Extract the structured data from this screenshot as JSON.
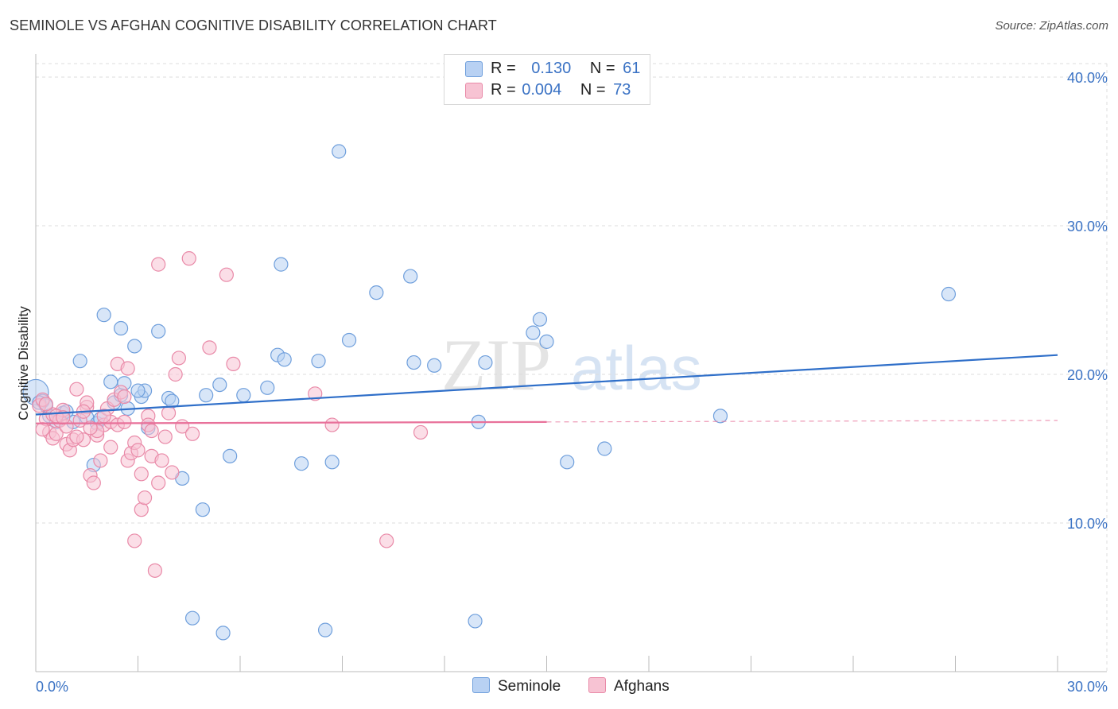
{
  "title": "SEMINOLE VS AFGHAN COGNITIVE DISABILITY CORRELATION CHART",
  "source": "Source: ZipAtlas.com",
  "legend": {
    "rows": [
      {
        "r_label": "R =",
        "r_value": "0.130",
        "n_label": "N =",
        "n_value": "61"
      },
      {
        "r_label": "R =",
        "r_value": "0.004",
        "n_label": "N =",
        "n_value": "73"
      }
    ]
  },
  "watermark": {
    "zip": "ZIP",
    "atlas": "atlas"
  },
  "colors": {
    "seminole_fill": "#b8d1f3",
    "seminole_stroke": "#6f9fdc",
    "seminole_line": "#2f6fc9",
    "afghans_fill": "#f7c3d3",
    "afghans_stroke": "#e98aa8",
    "afghans_line": "#e8719a",
    "tick_label": "#3a72c4",
    "grid": "#dddddd"
  },
  "chart_data": {
    "type": "scatter",
    "title": "SEMINOLE VS AFGHAN COGNITIVE DISABILITY CORRELATION CHART",
    "xlabel": "",
    "ylabel": "Cognitive Disability",
    "xlim": [
      0,
      30
    ],
    "ylim": [
      0,
      40
    ],
    "x_tick_labels": [
      "0.0%",
      "30.0%"
    ],
    "y_ticks": [
      10,
      20,
      30,
      40
    ],
    "y_tick_labels": [
      "10.0%",
      "20.0%",
      "30.0%",
      "40.0%"
    ],
    "grid": true,
    "legend_position": "top-center",
    "series": [
      {
        "name": "Seminole",
        "r": 0.13,
        "n": 61,
        "trend": {
          "x": [
            0,
            30
          ],
          "y": [
            17.3,
            21.3
          ],
          "dashed_from": null
        },
        "points": [
          [
            0.0,
            18.8
          ],
          [
            0.2,
            18.2
          ],
          [
            0.3,
            17.9
          ],
          [
            0.4,
            17.2
          ],
          [
            0.6,
            16.8
          ],
          [
            0.8,
            17.4
          ],
          [
            1.1,
            16.8
          ],
          [
            1.3,
            20.9
          ],
          [
            1.5,
            17.1
          ],
          [
            1.7,
            13.9
          ],
          [
            1.8,
            16.7
          ],
          [
            2.0,
            24.0
          ],
          [
            2.2,
            19.5
          ],
          [
            2.3,
            18.1
          ],
          [
            2.5,
            18.6
          ],
          [
            2.5,
            23.1
          ],
          [
            2.6,
            19.4
          ],
          [
            2.7,
            17.7
          ],
          [
            2.9,
            21.9
          ],
          [
            3.1,
            18.5
          ],
          [
            3.2,
            18.9
          ],
          [
            3.3,
            16.4
          ],
          [
            3.6,
            22.9
          ],
          [
            3.9,
            18.4
          ],
          [
            4.0,
            18.2
          ],
          [
            4.3,
            13.0
          ],
          [
            4.6,
            3.6
          ],
          [
            4.9,
            10.9
          ],
          [
            5.0,
            18.6
          ],
          [
            5.4,
            19.3
          ],
          [
            5.5,
            2.6
          ],
          [
            5.7,
            14.5
          ],
          [
            6.1,
            18.6
          ],
          [
            6.8,
            19.1
          ],
          [
            7.2,
            27.4
          ],
          [
            7.1,
            21.3
          ],
          [
            7.3,
            21.0
          ],
          [
            7.8,
            14.0
          ],
          [
            8.3,
            20.9
          ],
          [
            8.5,
            2.8
          ],
          [
            8.7,
            14.1
          ],
          [
            8.9,
            35.0
          ],
          [
            9.2,
            22.3
          ],
          [
            10.0,
            25.5
          ],
          [
            11.0,
            26.6
          ],
          [
            11.1,
            20.8
          ],
          [
            11.7,
            20.6
          ],
          [
            12.9,
            3.4
          ],
          [
            13.0,
            16.8
          ],
          [
            13.2,
            20.8
          ],
          [
            14.6,
            22.8
          ],
          [
            14.8,
            23.7
          ],
          [
            15.0,
            22.2
          ],
          [
            15.6,
            14.1
          ],
          [
            16.7,
            15.0
          ],
          [
            20.1,
            17.2
          ],
          [
            26.8,
            25.4
          ],
          [
            0.1,
            18.1
          ],
          [
            0.9,
            17.5
          ],
          [
            1.9,
            17.0
          ],
          [
            3.0,
            18.9
          ]
        ]
      },
      {
        "name": "Afghans",
        "r": 0.004,
        "n": 73,
        "trend": {
          "x": [
            0,
            30
          ],
          "y": [
            16.7,
            16.9
          ],
          "dashed_from": 15.0
        },
        "points": [
          [
            0.1,
            17.9
          ],
          [
            0.2,
            18.3
          ],
          [
            0.3,
            17.0
          ],
          [
            0.4,
            16.1
          ],
          [
            0.5,
            15.7
          ],
          [
            0.5,
            17.3
          ],
          [
            0.6,
            16.0
          ],
          [
            0.7,
            16.9
          ],
          [
            0.8,
            17.6
          ],
          [
            0.9,
            15.3
          ],
          [
            1.0,
            14.9
          ],
          [
            1.1,
            15.6
          ],
          [
            1.2,
            19.0
          ],
          [
            1.3,
            16.9
          ],
          [
            1.4,
            15.6
          ],
          [
            1.5,
            17.8
          ],
          [
            1.5,
            18.1
          ],
          [
            1.6,
            13.2
          ],
          [
            1.7,
            12.7
          ],
          [
            1.8,
            15.9
          ],
          [
            1.9,
            14.2
          ],
          [
            2.0,
            16.6
          ],
          [
            2.1,
            17.7
          ],
          [
            2.2,
            16.8
          ],
          [
            2.3,
            18.3
          ],
          [
            2.4,
            20.7
          ],
          [
            2.4,
            16.6
          ],
          [
            2.5,
            18.8
          ],
          [
            2.6,
            16.8
          ],
          [
            2.7,
            20.4
          ],
          [
            2.7,
            14.2
          ],
          [
            2.8,
            14.7
          ],
          [
            2.9,
            15.4
          ],
          [
            2.9,
            8.8
          ],
          [
            3.0,
            14.9
          ],
          [
            3.1,
            10.9
          ],
          [
            3.1,
            13.3
          ],
          [
            3.2,
            11.7
          ],
          [
            3.3,
            17.2
          ],
          [
            3.3,
            16.6
          ],
          [
            3.4,
            14.5
          ],
          [
            3.5,
            6.8
          ],
          [
            3.6,
            27.4
          ],
          [
            3.6,
            12.7
          ],
          [
            3.7,
            14.2
          ],
          [
            3.8,
            15.8
          ],
          [
            3.9,
            17.4
          ],
          [
            4.0,
            13.4
          ],
          [
            4.1,
            20.0
          ],
          [
            4.2,
            21.1
          ],
          [
            4.3,
            16.5
          ],
          [
            4.5,
            27.8
          ],
          [
            4.6,
            16.0
          ],
          [
            5.1,
            21.8
          ],
          [
            5.6,
            26.7
          ],
          [
            5.8,
            20.7
          ],
          [
            8.2,
            18.7
          ],
          [
            8.7,
            16.6
          ],
          [
            10.3,
            8.8
          ],
          [
            11.3,
            16.1
          ],
          [
            0.3,
            18.0
          ],
          [
            0.6,
            17.2
          ],
          [
            0.9,
            16.5
          ],
          [
            1.2,
            15.8
          ],
          [
            1.4,
            17.5
          ],
          [
            1.8,
            16.2
          ],
          [
            2.2,
            15.1
          ],
          [
            0.2,
            16.3
          ],
          [
            0.8,
            17.1
          ],
          [
            1.6,
            16.4
          ],
          [
            2.0,
            17.2
          ],
          [
            2.6,
            18.5
          ],
          [
            3.4,
            16.2
          ]
        ]
      }
    ]
  },
  "bottom_legend": [
    "Seminole",
    "Afghans"
  ]
}
